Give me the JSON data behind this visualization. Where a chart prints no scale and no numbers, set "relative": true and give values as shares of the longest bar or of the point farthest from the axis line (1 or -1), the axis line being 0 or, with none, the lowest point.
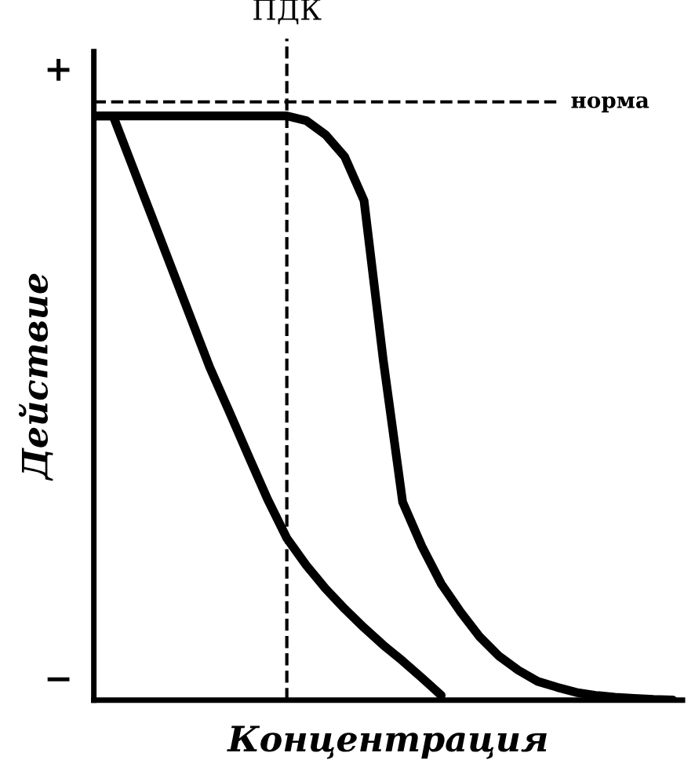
{
  "chart_data": {
    "type": "line",
    "relative": true,
    "xlabel": "Концентрация",
    "ylabel": "Действие",
    "categories": [
      null,
      null,
      null,
      null,
      null,
      null,
      null,
      null,
      null,
      null,
      null,
      null,
      null,
      null,
      null,
      null,
      null,
      null,
      null,
      null,
      null,
      null,
      null,
      null,
      null,
      null,
      null,
      null,
      null,
      null,
      null
    ],
    "series": [
      {
        "color": "#000000",
        "values": [
          1.0,
          1.0,
          0.914,
          0.828,
          0.742,
          0.656,
          0.57,
          0.495,
          0.419,
          0.344,
          0.277,
          0.231,
          0.191,
          0.156,
          0.124,
          0.094,
          0.067,
          0.038,
          0.008,
          null,
          null,
          null,
          null,
          null,
          null,
          null,
          null,
          null,
          null,
          null,
          null
        ]
      },
      {
        "color": "#000000",
        "values": [
          1.0,
          1.0,
          1.0,
          1.0,
          1.0,
          1.0,
          1.0,
          1.0,
          1.0,
          1.0,
          1.0,
          0.992,
          0.968,
          0.93,
          0.855,
          0.581,
          0.339,
          0.263,
          0.199,
          0.151,
          0.108,
          0.075,
          0.051,
          0.032,
          0.022,
          0.013,
          0.008,
          0.005,
          0.003,
          0.001,
          0.0
        ]
      }
    ],
    "ref_lines": [
      {
        "axis": "y",
        "value": 1.024,
        "label": "норма",
        "line_style": "dashed"
      }
    ],
    "annotations": [
      "+",
      "−",
      "ПДК"
    ],
    "line_style": "solid",
    "marker": "none",
    "grid": false,
    "legend": false
  }
}
